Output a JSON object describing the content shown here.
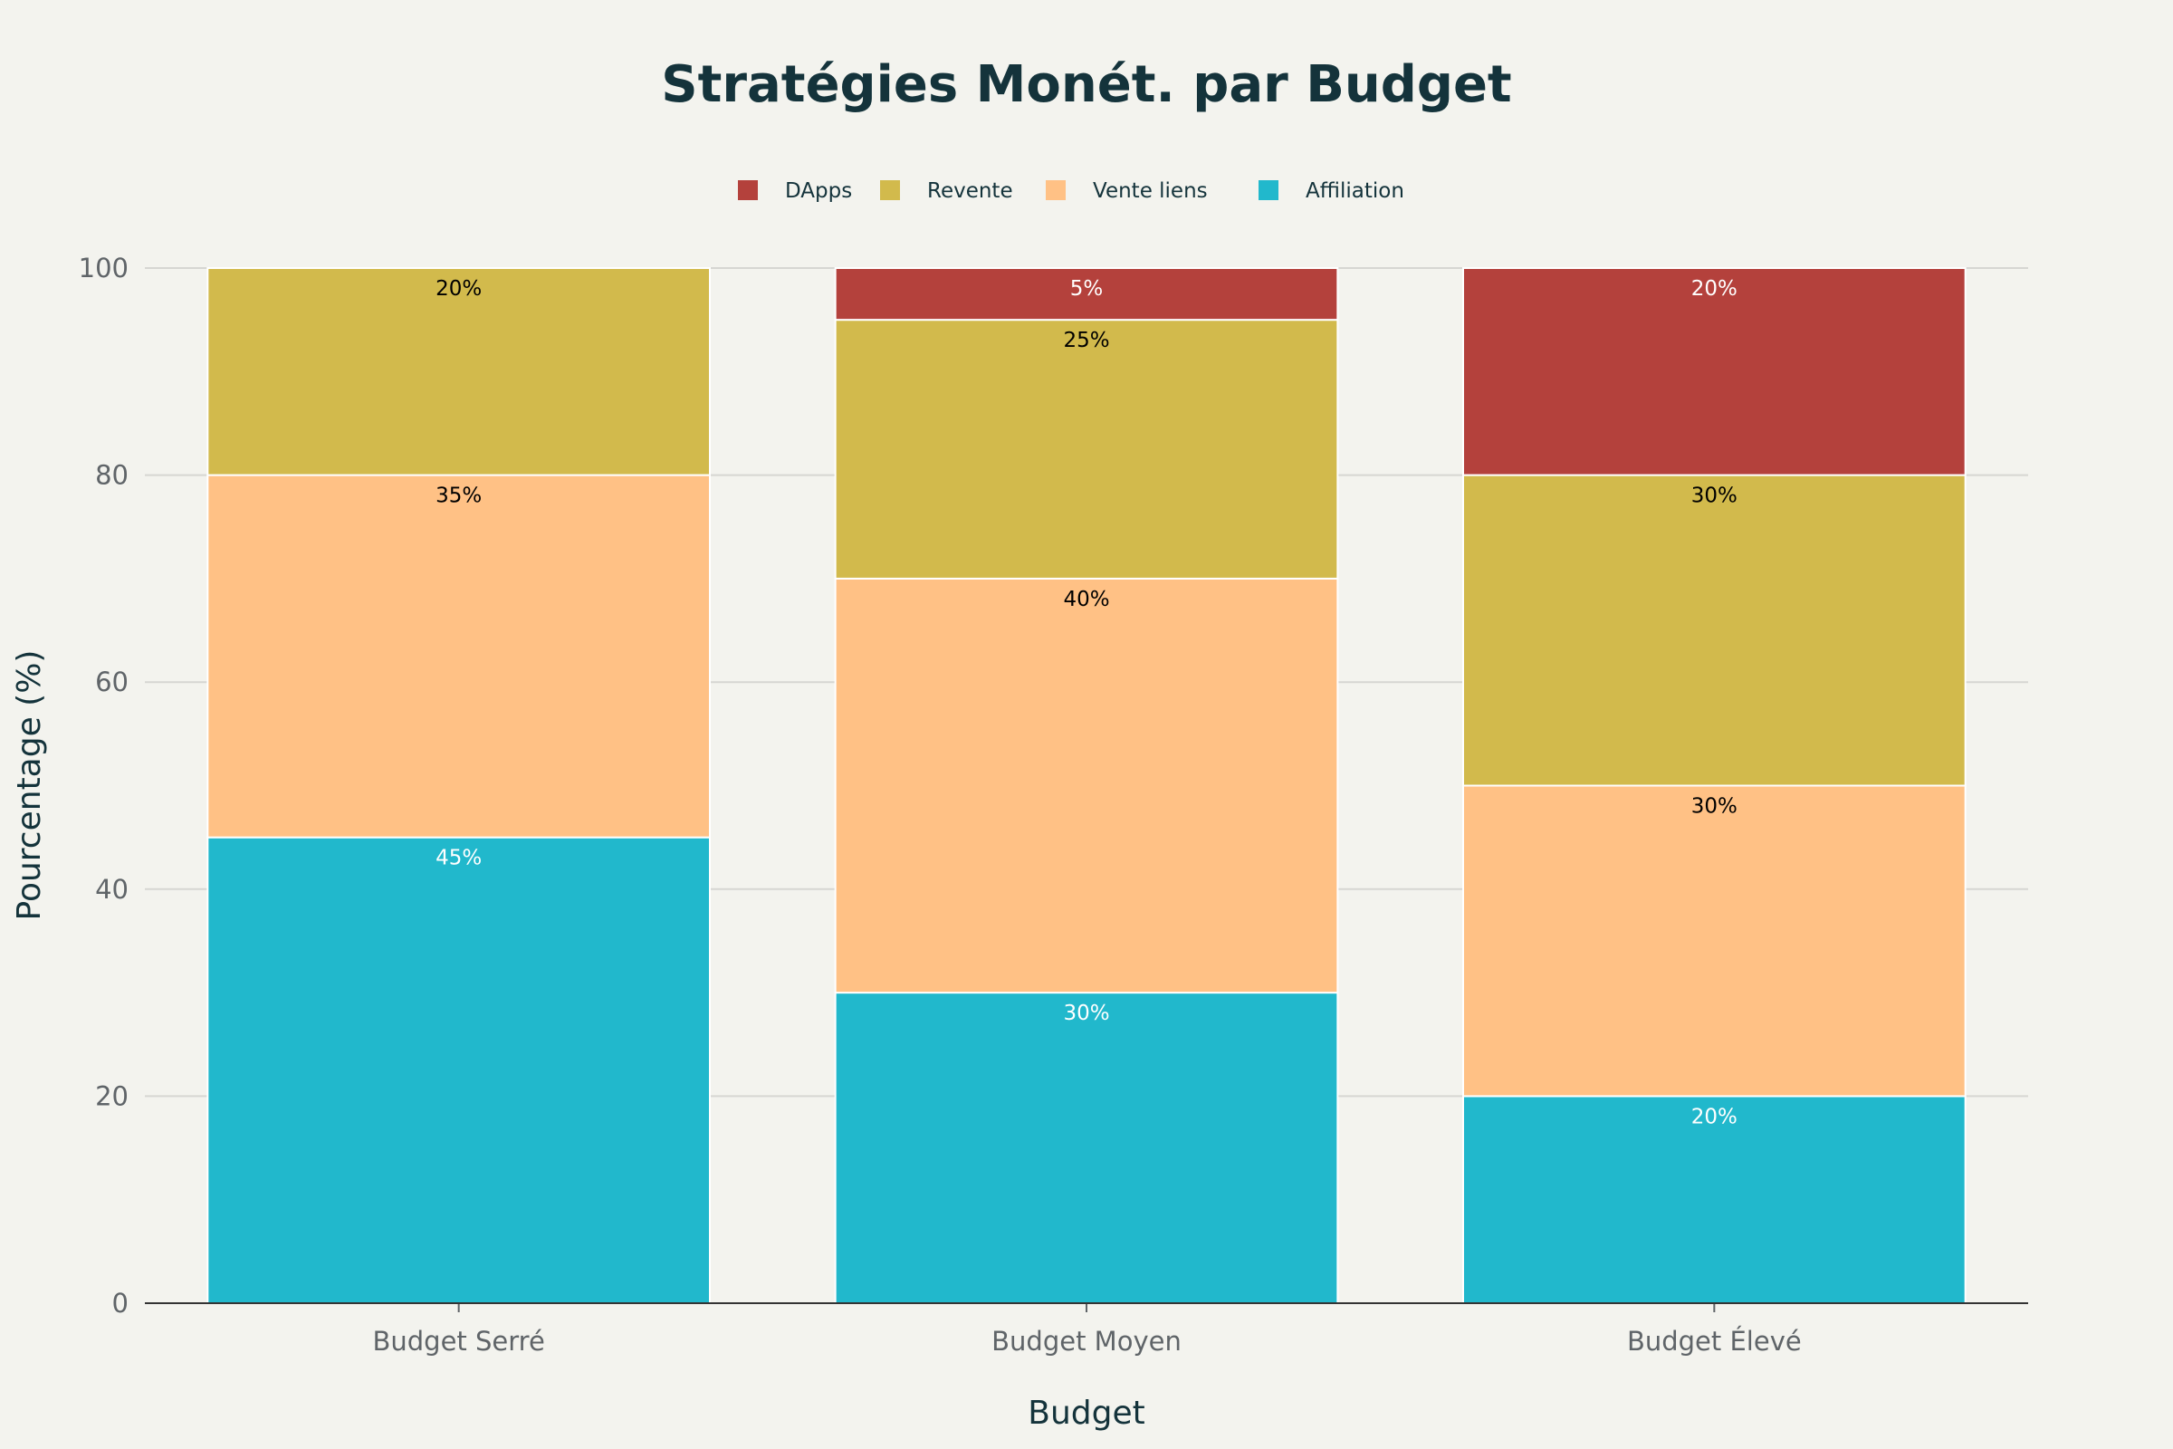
{
  "chart_data": {
    "type": "bar",
    "stacked": true,
    "title": "Stratégies Monét. par Budget",
    "xlabel": "Budget",
    "ylabel": "Pourcentage (%)",
    "ylim": [
      0,
      100
    ],
    "yticks": [
      0,
      20,
      40,
      60,
      80,
      100
    ],
    "grid": true,
    "legend_position": "top-center",
    "categories": [
      "Budget Serré",
      "Budget Moyen",
      "Budget Élevé"
    ],
    "series": [
      {
        "name": "Affiliation",
        "color": "#21b8cc",
        "label_color": "#ffffff",
        "values": [
          45,
          30,
          20
        ],
        "labels": [
          "45%",
          "30%",
          "20%"
        ]
      },
      {
        "name": "Vente liens",
        "color": "#ffc185",
        "label_color": "#000000",
        "values": [
          35,
          40,
          30
        ],
        "labels": [
          "35%",
          "40%",
          "30%"
        ]
      },
      {
        "name": "Revente",
        "color": "#d2ba4c",
        "label_color": "#000000",
        "values": [
          20,
          25,
          30
        ],
        "labels": [
          "20%",
          "25%",
          "30%"
        ]
      },
      {
        "name": "DApps",
        "color": "#b4413c",
        "label_color": "#ffffff",
        "values": [
          0,
          5,
          20
        ],
        "labels": [
          "",
          "5%",
          "20%"
        ]
      }
    ],
    "legend_order": [
      "DApps",
      "Revente",
      "Vente liens",
      "Affiliation"
    ]
  }
}
